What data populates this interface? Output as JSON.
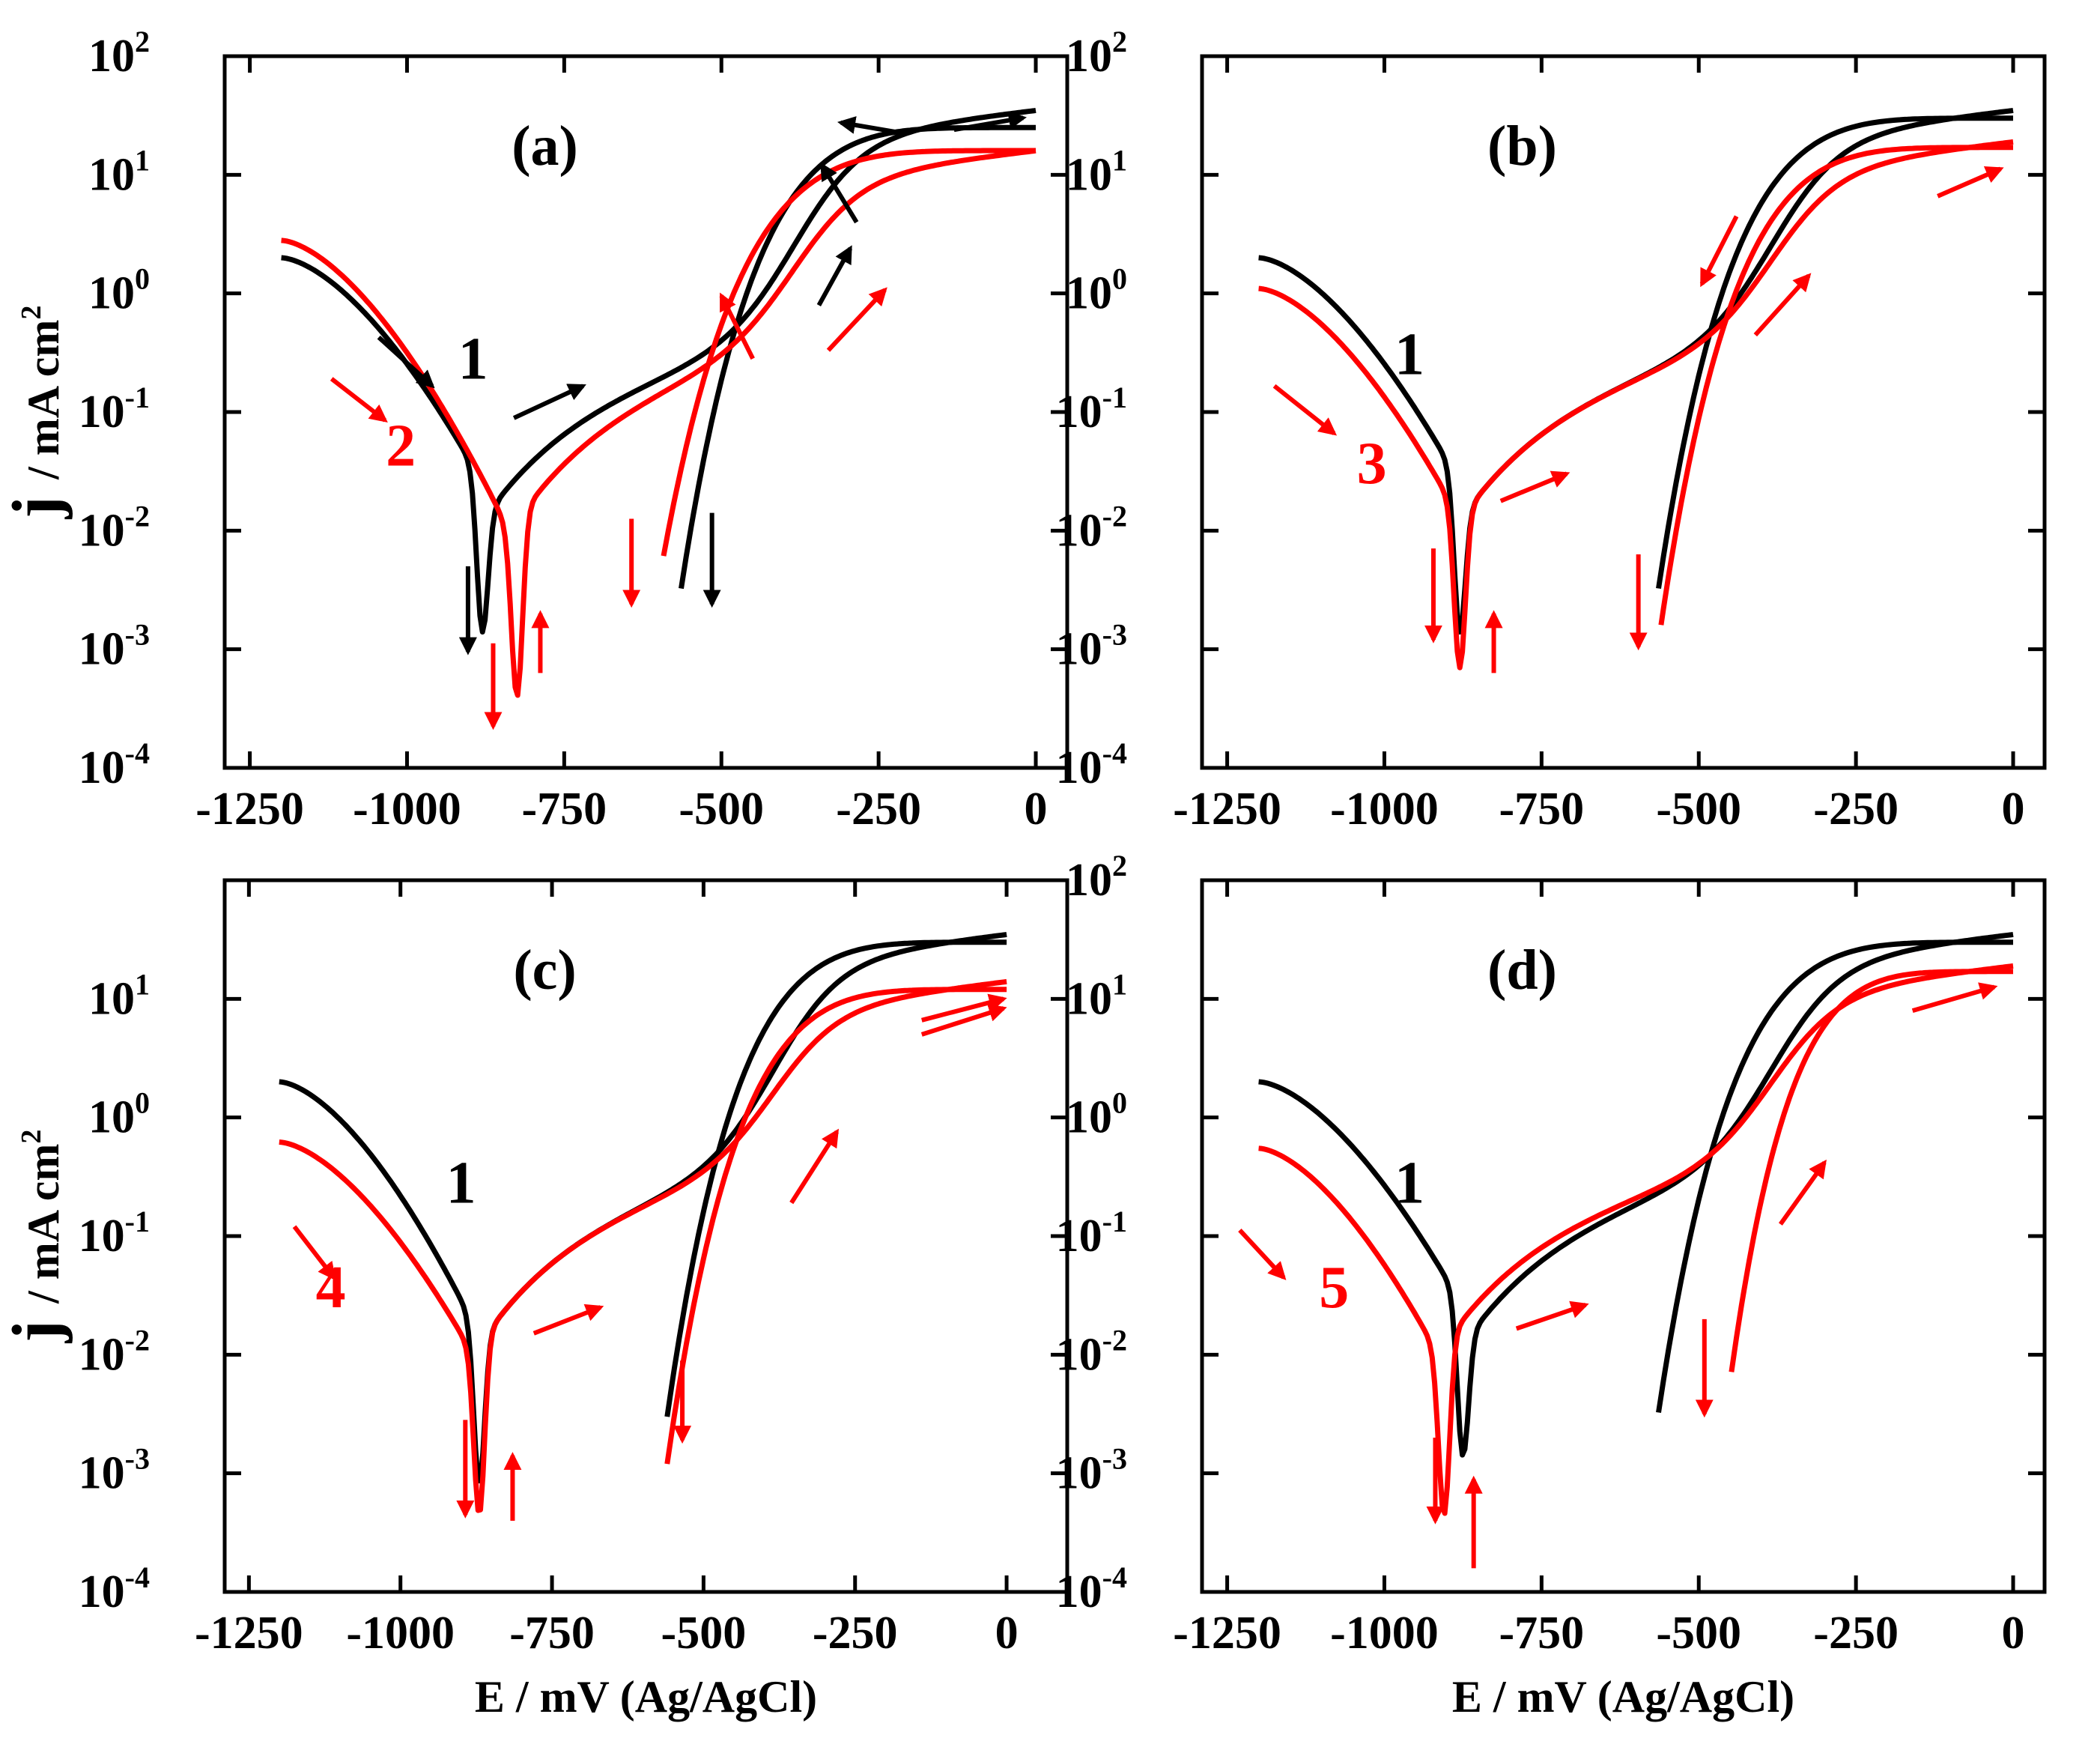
{
  "chart_data": [
    {
      "id": "a",
      "type": "line",
      "title": "(a)",
      "xlabel": "",
      "ylabel": "j / mA cm²",
      "ylabel_parts": {
        "main": "j",
        "rest": "/ mA cm",
        "sup": "2"
      },
      "yscale": "log",
      "xlim": [
        -1290,
        50
      ],
      "ylim_exp": [
        -4,
        2
      ],
      "xticks": [
        -1250,
        -1000,
        -750,
        -500,
        -250,
        0
      ],
      "xtick_labels": [
        "-1250",
        "-1000",
        "-750",
        "-500",
        "-250",
        "0"
      ],
      "ytick_exps": [
        -4,
        -3,
        -2,
        -1,
        0,
        1,
        2
      ],
      "ytick_base": "10",
      "ytick_sups": [
        "-4",
        "-3",
        "-2",
        "-1",
        "0",
        "1",
        "2"
      ],
      "series": [
        {
          "name": "1",
          "color": "#000000",
          "label": "1",
          "label_at": [
            -895,
            -0.72
          ],
          "ecorr1": -880,
          "ecorr2": -565,
          "jmin1": 0.0014,
          "jmin2": 0.003,
          "start_j": 2.0,
          "end_j": 35,
          "lower_end_j": 25
        },
        {
          "name": "2",
          "color": "#ff0000",
          "label": "2",
          "label_at": [
            -1010,
            -1.45
          ],
          "ecorr1": -825,
          "ecorr2": -595,
          "jmin1": 0.0004,
          "jmin2": 0.005,
          "start_j": 2.8,
          "end_j": 16,
          "lower_end_j": 16
        }
      ],
      "arrows": [
        {
          "color": "#000000",
          "from": [
            -1045,
            -0.37
          ],
          "to": [
            -960,
            -0.78
          ]
        },
        {
          "color": "#ff0000",
          "from": [
            -1120,
            -0.72
          ],
          "to": [
            -1035,
            -1.07
          ]
        },
        {
          "color": "#000000",
          "from": [
            -830,
            -1.05
          ],
          "to": [
            -720,
            -0.78
          ]
        },
        {
          "color": "#000000",
          "from": [
            -285,
            0.6
          ],
          "to": [
            -340,
            1.08
          ]
        },
        {
          "color": "#000000",
          "from": [
            -130,
            1.38
          ],
          "to": [
            -20,
            1.48
          ]
        },
        {
          "color": "#000000",
          "from": [
            -210,
            1.35
          ],
          "to": [
            -310,
            1.44
          ]
        },
        {
          "color": "#000000",
          "from": [
            -345,
            -0.1
          ],
          "to": [
            -295,
            0.38
          ]
        },
        {
          "color": "#ff0000",
          "from": [
            -450,
            -0.55
          ],
          "to": [
            -500,
            -0.02
          ]
        },
        {
          "color": "#ff0000",
          "from": [
            -330,
            -0.48
          ],
          "to": [
            -240,
            0.03
          ]
        },
        {
          "color": "#ff0000",
          "from": [
            -643,
            -1.9
          ],
          "to": [
            -643,
            -2.62
          ]
        },
        {
          "color": "#000000",
          "from": [
            -515,
            -1.85
          ],
          "to": [
            -515,
            -2.62
          ]
        },
        {
          "color": "#000000",
          "from": [
            -903,
            -2.3
          ],
          "to": [
            -903,
            -3.02
          ]
        },
        {
          "color": "#ff0000",
          "from": [
            -863,
            -2.95
          ],
          "to": [
            -863,
            -3.65
          ]
        },
        {
          "color": "#ff0000",
          "from": [
            -788,
            -3.2
          ],
          "to": [
            -788,
            -2.7
          ]
        }
      ]
    },
    {
      "id": "b",
      "type": "line",
      "title": "(b)",
      "xlabel": "",
      "ylabel": "j / mA cm²",
      "ylabel_parts": {
        "main": "j",
        "rest": "/ mA cm",
        "sup": "2"
      },
      "yscale": "log",
      "xlim": [
        -1290,
        50
      ],
      "ylim_exp": [
        -4,
        2
      ],
      "xticks": [
        -1250,
        -1000,
        -750,
        -500,
        -250,
        0
      ],
      "xtick_labels": [
        "-1250",
        "-1000",
        "-750",
        "-500",
        "-250",
        "0"
      ],
      "ytick_exps": [
        -4,
        -3,
        -2,
        -1,
        0,
        1,
        2
      ],
      "ytick_base": "10",
      "ytick_sups": [
        "-4",
        "-3",
        "-2",
        "-1",
        "0",
        "1",
        "2"
      ],
      "series": [
        {
          "name": "1",
          "color": "#000000",
          "label": "1",
          "label_at": [
            -960,
            -0.68
          ],
          "ecorr1": -880,
          "ecorr2": -565,
          "jmin1": 0.0014,
          "jmin2": 0.003,
          "start_j": 2.0,
          "end_j": 35,
          "lower_end_j": 30
        },
        {
          "name": "3",
          "color": "#ff0000",
          "label": "3",
          "label_at": [
            -1020,
            -1.6
          ],
          "ecorr1": -880,
          "ecorr2": -560,
          "jmin1": 0.0007,
          "jmin2": 0.0016,
          "start_j": 1.1,
          "end_j": 19,
          "lower_end_j": 17
        }
      ],
      "arrows": [
        {
          "color": "#ff0000",
          "from": [
            -1175,
            -0.78
          ],
          "to": [
            -1080,
            -1.18
          ]
        },
        {
          "color": "#ff0000",
          "from": [
            -815,
            -1.75
          ],
          "to": [
            -710,
            -1.52
          ]
        },
        {
          "color": "#ff0000",
          "from": [
            -410,
            -0.35
          ],
          "to": [
            -325,
            0.15
          ]
        },
        {
          "color": "#ff0000",
          "from": [
            -120,
            0.82
          ],
          "to": [
            -20,
            1.05
          ]
        },
        {
          "color": "#ff0000",
          "from": [
            -440,
            0.65
          ],
          "to": [
            -495,
            0.08
          ]
        },
        {
          "color": "#ff0000",
          "from": [
            -922,
            -2.15
          ],
          "to": [
            -922,
            -2.92
          ]
        },
        {
          "color": "#ff0000",
          "from": [
            -826,
            -3.2
          ],
          "to": [
            -826,
            -2.7
          ]
        },
        {
          "color": "#ff0000",
          "from": [
            -596,
            -2.2
          ],
          "to": [
            -596,
            -2.98
          ]
        }
      ]
    },
    {
      "id": "c",
      "type": "line",
      "title": "(c)",
      "xlabel": "E / mV (Ag/AgCl)",
      "ylabel": "j / mA cm²",
      "ylabel_parts": {
        "main": "j",
        "rest": "/ mA cm",
        "sup": "2"
      },
      "yscale": "log",
      "xlim": [
        -1290,
        100
      ],
      "ylim_exp": [
        -4,
        2
      ],
      "xticks": [
        -1250,
        -1000,
        -750,
        -500,
        -250,
        0
      ],
      "xtick_labels": [
        "-1250",
        "-1000",
        "-750",
        "-500",
        "-250",
        "0"
      ],
      "ytick_exps": [
        -4,
        -3,
        -2,
        -1,
        0,
        1
      ],
      "ytick_base": "10",
      "ytick_sups": [
        "-4",
        "-3",
        "-2",
        "-1",
        "0",
        "1"
      ],
      "series": [
        {
          "name": "1",
          "color": "#000000",
          "label": "1",
          "label_at": [
            -900,
            -0.72
          ],
          "ecorr1": -870,
          "ecorr2": -560,
          "jmin1": 0.0008,
          "jmin2": 0.003,
          "start_j": 2.0,
          "end_j": 35,
          "lower_end_j": 30
        },
        {
          "name": "4",
          "color": "#ff0000",
          "label": "4",
          "label_at": [
            -1115,
            -1.6
          ],
          "ecorr1": -870,
          "ecorr2": -560,
          "jmin1": 0.00045,
          "jmin2": 0.0012,
          "start_j": 0.62,
          "end_j": 14,
          "lower_end_j": 12
        }
      ],
      "arrows": [
        {
          "color": "#ff0000",
          "from": [
            -1175,
            -0.92
          ],
          "to": [
            -1110,
            -1.35
          ]
        },
        {
          "color": "#ff0000",
          "from": [
            -780,
            -1.82
          ],
          "to": [
            -670,
            -1.6
          ]
        },
        {
          "color": "#ff0000",
          "from": [
            -355,
            -0.72
          ],
          "to": [
            -280,
            -0.12
          ]
        },
        {
          "color": "#ff0000",
          "from": [
            -140,
            0.82
          ],
          "to": [
            -5,
            1.0
          ]
        },
        {
          "color": "#ff0000",
          "from": [
            -140,
            0.7
          ],
          "to": [
            -5,
            0.92
          ]
        },
        {
          "color": "#ff0000",
          "from": [
            -893,
            -2.55
          ],
          "to": [
            -893,
            -3.35
          ]
        },
        {
          "color": "#ff0000",
          "from": [
            -815,
            -3.4
          ],
          "to": [
            -815,
            -2.85
          ]
        },
        {
          "color": "#ff0000",
          "from": [
            -535,
            -2.05
          ],
          "to": [
            -535,
            -2.72
          ]
        }
      ]
    },
    {
      "id": "d",
      "type": "line",
      "title": "(d)",
      "xlabel": "E / mV (Ag/AgCl)",
      "ylabel": "j / mA cm²",
      "ylabel_parts": {
        "main": "j",
        "rest": "/ mA cm",
        "sup": "2"
      },
      "yscale": "log",
      "xlim": [
        -1290,
        50
      ],
      "ylim_exp": [
        -4,
        2
      ],
      "xticks": [
        -1250,
        -1000,
        -750,
        -500,
        -250,
        0
      ],
      "xtick_labels": [
        "-1250",
        "-1000",
        "-750",
        "-500",
        "-250",
        "0"
      ],
      "ytick_exps": [
        -4,
        -3,
        -2,
        -1,
        0,
        1,
        2
      ],
      "ytick_base": "10",
      "ytick_sups": [
        "-4",
        "-3",
        "-2",
        "-1",
        "0",
        "1",
        "2"
      ],
      "series": [
        {
          "name": "1",
          "color": "#000000",
          "label": "1",
          "label_at": [
            -960,
            -0.72
          ],
          "ecorr1": -875,
          "ecorr2": -565,
          "jmin1": 0.0014,
          "jmin2": 0.003,
          "start_j": 2.0,
          "end_j": 35,
          "lower_end_j": 30
        },
        {
          "name": "5",
          "color": "#ff0000",
          "label": "5",
          "label_at": [
            -1080,
            -1.6
          ],
          "ecorr1": -905,
          "ecorr2": -450,
          "jmin1": 0.00045,
          "jmin2": 0.006,
          "start_j": 0.55,
          "end_j": 19,
          "lower_end_j": 17
        }
      ],
      "arrows": [
        {
          "color": "#ff0000",
          "from": [
            -1230,
            -0.95
          ],
          "to": [
            -1160,
            -1.35
          ]
        },
        {
          "color": "#ff0000",
          "from": [
            -790,
            -1.78
          ],
          "to": [
            -680,
            -1.58
          ]
        },
        {
          "color": "#ff0000",
          "from": [
            -370,
            -0.9
          ],
          "to": [
            -300,
            -0.38
          ]
        },
        {
          "color": "#ff0000",
          "from": [
            -160,
            0.9
          ],
          "to": [
            -30,
            1.1
          ]
        },
        {
          "color": "#ff0000",
          "from": [
            -919,
            -2.7
          ],
          "to": [
            -919,
            -3.4
          ]
        },
        {
          "color": "#ff0000",
          "from": [
            -858,
            -3.8
          ],
          "to": [
            -858,
            -3.05
          ]
        },
        {
          "color": "#ff0000",
          "from": [
            -491,
            -1.7
          ],
          "to": [
            -491,
            -2.5
          ]
        }
      ]
    }
  ]
}
